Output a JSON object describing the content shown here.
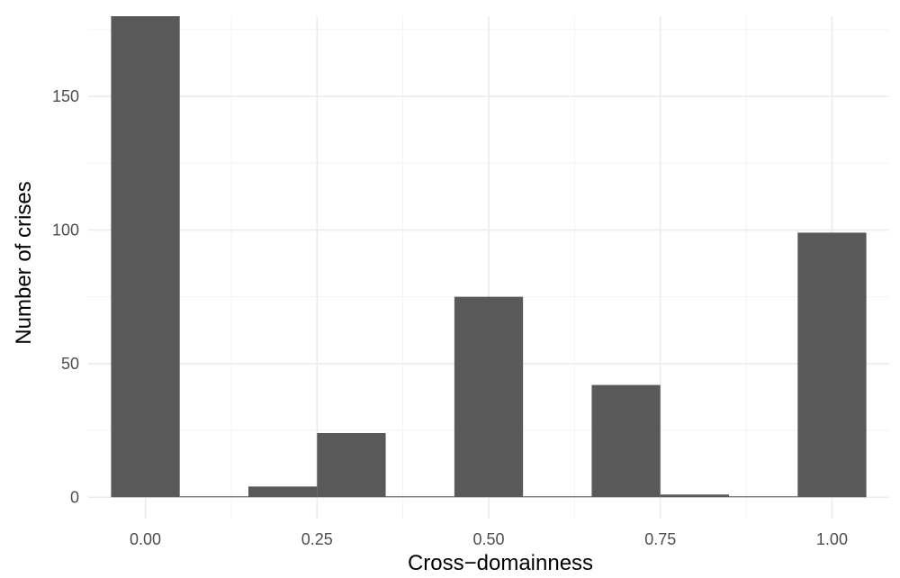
{
  "chart_data": {
    "type": "bar",
    "xlabel": "Cross−domainness",
    "ylabel": "Number of crises",
    "xlim": [
      -0.0833,
      1.0833
    ],
    "ylim": [
      -8,
      180
    ],
    "bin_width": 0.1,
    "x_ticks": [
      {
        "value": 0.0,
        "label": "0.00"
      },
      {
        "value": 0.25,
        "label": "0.25"
      },
      {
        "value": 0.5,
        "label": "0.50"
      },
      {
        "value": 0.75,
        "label": "0.75"
      },
      {
        "value": 1.0,
        "label": "1.00"
      }
    ],
    "y_ticks": [
      {
        "value": 0,
        "label": "0"
      },
      {
        "value": 50,
        "label": "50"
      },
      {
        "value": 100,
        "label": "100"
      },
      {
        "value": 150,
        "label": "150"
      }
    ],
    "bins": [
      {
        "x": 0.0,
        "count": 180
      },
      {
        "x": 0.1,
        "count": 0
      },
      {
        "x": 0.2,
        "count": 4
      },
      {
        "x": 0.3,
        "count": 24
      },
      {
        "x": 0.4,
        "count": 0
      },
      {
        "x": 0.5,
        "count": 75
      },
      {
        "x": 0.6,
        "count": 0
      },
      {
        "x": 0.7,
        "count": 42
      },
      {
        "x": 0.8,
        "count": 1
      },
      {
        "x": 0.9,
        "count": 0
      },
      {
        "x": 1.0,
        "count": 99
      }
    ],
    "grid": true,
    "legend": "none",
    "colors": {
      "bar": "#595959",
      "grid_major": "#ebebeb",
      "grid_minor": "#f3f3f3"
    }
  }
}
